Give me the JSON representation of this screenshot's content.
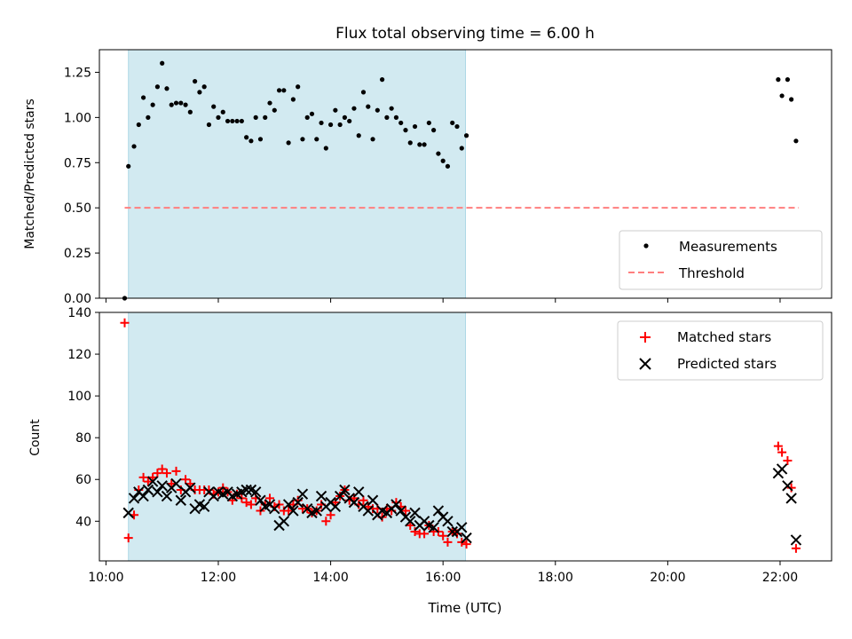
{
  "title": "Flux total observing time = 6.00 h",
  "colors": {
    "shade": "#add8e6",
    "threshold": "#ff7f7f",
    "matched": "#ff0000",
    "predicted": "#000000",
    "measurement": "#000000"
  },
  "chart_data": [
    {
      "type": "scatter",
      "title": "Flux total observing time = 6.00 h",
      "xlabel": "",
      "ylabel": "Matched/Predicted stars",
      "xlim": [
        "09:53",
        "22:55"
      ],
      "ylim": [
        0,
        1.375
      ],
      "yticks": [
        0.0,
        0.25,
        0.5,
        0.75,
        1.0,
        1.25
      ],
      "ytick_labels": [
        "0.00",
        "0.25",
        "0.50",
        "0.75",
        "1.00",
        "1.25"
      ],
      "shaded_span": [
        "10:24",
        "16:24"
      ],
      "legend": {
        "placement": "bottom-right",
        "entries": [
          "Measurements",
          "Threshold"
        ]
      },
      "threshold": {
        "name": "Threshold",
        "y": 0.5,
        "x_range": [
          "10:20",
          "22:20"
        ],
        "style": "dashed"
      },
      "series": [
        {
          "name": "Measurements",
          "marker": "dot",
          "points": [
            [
              "10:20",
              0.0
            ],
            [
              "10:24",
              0.73
            ],
            [
              "10:30",
              0.84
            ],
            [
              "10:35",
              0.96
            ],
            [
              "10:40",
              1.11
            ],
            [
              "10:45",
              1.0
            ],
            [
              "10:50",
              1.07
            ],
            [
              "10:55",
              1.17
            ],
            [
              "11:00",
              1.3
            ],
            [
              "11:05",
              1.16
            ],
            [
              "11:10",
              1.07
            ],
            [
              "11:15",
              1.08
            ],
            [
              "11:20",
              1.08
            ],
            [
              "11:25",
              1.07
            ],
            [
              "11:30",
              1.03
            ],
            [
              "11:35",
              1.2
            ],
            [
              "11:40",
              1.14
            ],
            [
              "11:45",
              1.17
            ],
            [
              "11:50",
              0.96
            ],
            [
              "11:55",
              1.06
            ],
            [
              "12:00",
              1.0
            ],
            [
              "12:05",
              1.03
            ],
            [
              "12:10",
              0.98
            ],
            [
              "12:15",
              0.98
            ],
            [
              "12:20",
              0.98
            ],
            [
              "12:25",
              0.98
            ],
            [
              "12:30",
              0.89
            ],
            [
              "12:35",
              0.87
            ],
            [
              "12:40",
              1.0
            ],
            [
              "12:45",
              0.88
            ],
            [
              "12:50",
              1.0
            ],
            [
              "12:55",
              1.08
            ],
            [
              "13:00",
              1.04
            ],
            [
              "13:05",
              1.15
            ],
            [
              "13:10",
              1.15
            ],
            [
              "13:15",
              0.86
            ],
            [
              "13:20",
              1.1
            ],
            [
              "13:25",
              1.17
            ],
            [
              "13:30",
              0.88
            ],
            [
              "13:35",
              1.0
            ],
            [
              "13:40",
              1.02
            ],
            [
              "13:45",
              0.88
            ],
            [
              "13:50",
              0.97
            ],
            [
              "13:55",
              0.83
            ],
            [
              "14:00",
              0.96
            ],
            [
              "14:05",
              1.04
            ],
            [
              "14:10",
              0.96
            ],
            [
              "14:15",
              1.0
            ],
            [
              "14:20",
              0.98
            ],
            [
              "14:25",
              1.05
            ],
            [
              "14:30",
              0.9
            ],
            [
              "14:35",
              1.14
            ],
            [
              "14:40",
              1.06
            ],
            [
              "14:45",
              0.88
            ],
            [
              "14:50",
              1.04
            ],
            [
              "14:55",
              1.21
            ],
            [
              "15:00",
              1.0
            ],
            [
              "15:05",
              1.05
            ],
            [
              "15:10",
              1.0
            ],
            [
              "15:15",
              0.97
            ],
            [
              "15:20",
              0.93
            ],
            [
              "15:25",
              0.86
            ],
            [
              "15:30",
              0.95
            ],
            [
              "15:35",
              0.85
            ],
            [
              "15:40",
              0.85
            ],
            [
              "15:45",
              0.97
            ],
            [
              "15:50",
              0.93
            ],
            [
              "15:55",
              0.8
            ],
            [
              "16:00",
              0.76
            ],
            [
              "16:05",
              0.73
            ],
            [
              "16:10",
              0.97
            ],
            [
              "16:15",
              0.95
            ],
            [
              "16:20",
              0.83
            ],
            [
              "16:25",
              0.9
            ],
            [
              "21:58",
              1.21
            ],
            [
              "22:02",
              1.12
            ],
            [
              "22:08",
              1.21
            ],
            [
              "22:12",
              1.1
            ],
            [
              "22:17",
              0.87
            ]
          ]
        }
      ]
    },
    {
      "type": "scatter",
      "xlabel": "Time (UTC)",
      "ylabel": "Count",
      "xlim": [
        "09:53",
        "22:55"
      ],
      "ylim": [
        21,
        140
      ],
      "yticks": [
        40,
        60,
        80,
        100,
        120,
        140
      ],
      "xticks": [
        "10:00",
        "12:00",
        "14:00",
        "16:00",
        "18:00",
        "20:00",
        "22:00"
      ],
      "shaded_span": [
        "10:24",
        "16:24"
      ],
      "legend": {
        "placement": "top-right",
        "entries": [
          "Matched stars",
          "Predicted stars"
        ]
      },
      "series": [
        {
          "name": "Matched stars",
          "marker": "plus",
          "points": [
            [
              "10:20",
              135
            ],
            [
              "10:24",
              32
            ],
            [
              "10:30",
              43
            ],
            [
              "10:35",
              55
            ],
            [
              "10:40",
              61
            ],
            [
              "10:45",
              59
            ],
            [
              "10:50",
              61
            ],
            [
              "10:55",
              63
            ],
            [
              "11:00",
              65
            ],
            [
              "11:05",
              63
            ],
            [
              "11:10",
              58
            ],
            [
              "11:15",
              64
            ],
            [
              "11:20",
              55
            ],
            [
              "11:25",
              60
            ],
            [
              "11:30",
              58
            ],
            [
              "11:35",
              55
            ],
            [
              "11:40",
              55
            ],
            [
              "11:45",
              55
            ],
            [
              "11:50",
              55
            ],
            [
              "11:55",
              53
            ],
            [
              "12:00",
              54
            ],
            [
              "12:05",
              56
            ],
            [
              "12:10",
              54
            ],
            [
              "12:15",
              50
            ],
            [
              "12:20",
              53
            ],
            [
              "12:25",
              51
            ],
            [
              "12:30",
              49
            ],
            [
              "12:35",
              48
            ],
            [
              "12:40",
              51
            ],
            [
              "12:45",
              45
            ],
            [
              "12:50",
              48
            ],
            [
              "12:55",
              51
            ],
            [
              "13:00",
              47
            ],
            [
              "13:05",
              48
            ],
            [
              "13:10",
              45
            ],
            [
              "13:15",
              45
            ],
            [
              "13:20",
              48
            ],
            [
              "13:25",
              50
            ],
            [
              "13:30",
              46
            ],
            [
              "13:35",
              46
            ],
            [
              "13:40",
              44
            ],
            [
              "13:45",
              45
            ],
            [
              "13:50",
              48
            ],
            [
              "13:55",
              40
            ],
            [
              "14:00",
              43
            ],
            [
              "14:05",
              49
            ],
            [
              "14:10",
              52
            ],
            [
              "14:15",
              55
            ],
            [
              "14:20",
              50
            ],
            [
              "14:25",
              51
            ],
            [
              "14:30",
              48
            ],
            [
              "14:35",
              50
            ],
            [
              "14:40",
              47
            ],
            [
              "14:45",
              46
            ],
            [
              "14:50",
              46
            ],
            [
              "14:55",
              42
            ],
            [
              "15:00",
              46
            ],
            [
              "15:05",
              45
            ],
            [
              "15:10",
              49
            ],
            [
              "15:15",
              47
            ],
            [
              "15:20",
              45
            ],
            [
              "15:25",
              38
            ],
            [
              "15:30",
              35
            ],
            [
              "15:35",
              34
            ],
            [
              "15:40",
              34
            ],
            [
              "15:45",
              38
            ],
            [
              "15:50",
              35
            ],
            [
              "15:55",
              35
            ],
            [
              "16:00",
              33
            ],
            [
              "16:05",
              30
            ],
            [
              "16:10",
              35
            ],
            [
              "16:15",
              34
            ],
            [
              "16:20",
              30
            ],
            [
              "16:25",
              29
            ],
            [
              "21:58",
              76
            ],
            [
              "22:02",
              73
            ],
            [
              "22:08",
              69
            ],
            [
              "22:12",
              56
            ],
            [
              "22:17",
              27
            ]
          ]
        },
        {
          "name": "Predicted stars",
          "marker": "x",
          "points": [
            [
              "10:24",
              44
            ],
            [
              "10:30",
              51
            ],
            [
              "10:35",
              54
            ],
            [
              "10:40",
              52
            ],
            [
              "10:45",
              55
            ],
            [
              "10:50",
              59
            ],
            [
              "10:55",
              54
            ],
            [
              "11:00",
              57
            ],
            [
              "11:05",
              52
            ],
            [
              "11:10",
              56
            ],
            [
              "11:15",
              58
            ],
            [
              "11:20",
              50
            ],
            [
              "11:25",
              54
            ],
            [
              "11:30",
              56
            ],
            [
              "11:35",
              46
            ],
            [
              "11:40",
              48
            ],
            [
              "11:45",
              47
            ],
            [
              "11:50",
              54
            ],
            [
              "11:55",
              52
            ],
            [
              "12:00",
              54
            ],
            [
              "12:05",
              53
            ],
            [
              "12:10",
              54
            ],
            [
              "12:15",
              52
            ],
            [
              "12:20",
              53
            ],
            [
              "12:25",
              54
            ],
            [
              "12:30",
              55
            ],
            [
              "12:35",
              55
            ],
            [
              "12:40",
              54
            ],
            [
              "12:45",
              50
            ],
            [
              "12:50",
              47
            ],
            [
              "12:55",
              48
            ],
            [
              "13:00",
              46
            ],
            [
              "13:05",
              38
            ],
            [
              "13:10",
              40
            ],
            [
              "13:15",
              48
            ],
            [
              "13:20",
              45
            ],
            [
              "13:25",
              49
            ],
            [
              "13:30",
              53
            ],
            [
              "13:35",
              46
            ],
            [
              "13:40",
              44
            ],
            [
              "13:45",
              45
            ],
            [
              "13:50",
              52
            ],
            [
              "13:55",
              47
            ],
            [
              "14:00",
              49
            ],
            [
              "14:05",
              47
            ],
            [
              "14:10",
              52
            ],
            [
              "14:15",
              55
            ],
            [
              "14:20",
              51
            ],
            [
              "14:25",
              49
            ],
            [
              "14:30",
              54
            ],
            [
              "14:35",
              47
            ],
            [
              "14:40",
              45
            ],
            [
              "14:45",
              50
            ],
            [
              "14:50",
              43
            ],
            [
              "14:55",
              45
            ],
            [
              "15:00",
              44
            ],
            [
              "15:05",
              46
            ],
            [
              "15:10",
              48
            ],
            [
              "15:15",
              45
            ],
            [
              "15:20",
              42
            ],
            [
              "15:25",
              40
            ],
            [
              "15:30",
              44
            ],
            [
              "15:35",
              38
            ],
            [
              "15:40",
              40
            ],
            [
              "15:45",
              38
            ],
            [
              "15:50",
              37
            ],
            [
              "15:55",
              45
            ],
            [
              "16:00",
              42
            ],
            [
              "16:05",
              40
            ],
            [
              "16:10",
              35
            ],
            [
              "16:15",
              35
            ],
            [
              "16:20",
              37
            ],
            [
              "16:25",
              32
            ],
            [
              "21:58",
              63
            ],
            [
              "22:02",
              65
            ],
            [
              "22:08",
              57
            ],
            [
              "22:12",
              51
            ],
            [
              "22:17",
              31
            ]
          ]
        }
      ]
    }
  ]
}
